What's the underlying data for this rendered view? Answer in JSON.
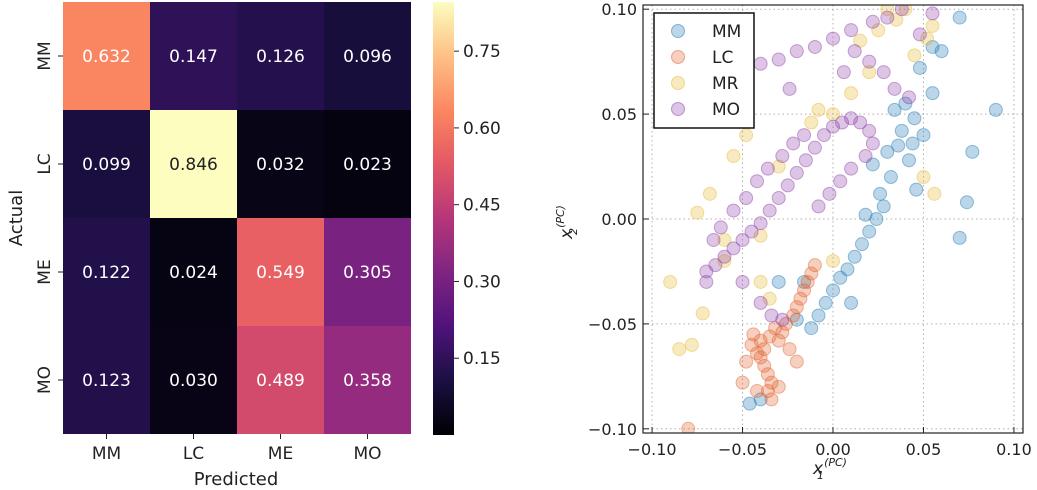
{
  "chart_data": [
    {
      "type": "heatmap",
      "title": "",
      "xlabel": "Predicted",
      "ylabel": "Actual",
      "x_categories": [
        "MM",
        "LC",
        "ME",
        "MO"
      ],
      "y_categories": [
        "MM",
        "LC",
        "ME",
        "MO"
      ],
      "values": [
        [
          0.632,
          0.147,
          0.126,
          0.096
        ],
        [
          0.099,
          0.846,
          0.032,
          0.023
        ],
        [
          0.122,
          0.024,
          0.549,
          0.305
        ],
        [
          0.123,
          0.03,
          0.489,
          0.358
        ]
      ],
      "cell_labels": [
        [
          "0.632",
          "0.147",
          "0.126",
          "0.096"
        ],
        [
          "0.099",
          "0.846",
          "0.032",
          "0.023"
        ],
        [
          "0.122",
          "0.024",
          "0.549",
          "0.305"
        ],
        [
          "0.123",
          "0.030",
          "0.489",
          "0.358"
        ]
      ],
      "colormap": "magma",
      "colorbar": {
        "range": [
          0.0,
          0.846
        ],
        "ticks": [
          0.15,
          0.3,
          0.45,
          0.6,
          0.75
        ],
        "tick_labels": [
          "0.15",
          "0.30",
          "0.45",
          "0.60",
          "0.75"
        ]
      }
    },
    {
      "type": "scatter",
      "title": "",
      "xlabel": "x",
      "xlabel_sub": "1",
      "xlabel_sup": "(PC)",
      "ylabel": "x",
      "ylabel_sub": "2",
      "ylabel_sup": "(PC)",
      "xlim": [
        -0.105,
        0.105
      ],
      "ylim": [
        -0.102,
        0.102
      ],
      "xticks": [
        -0.1,
        -0.05,
        0.0,
        0.05,
        0.1
      ],
      "xtick_labels": [
        "−0.10",
        "−0.05",
        "0.00",
        "0.05",
        "0.10"
      ],
      "yticks": [
        -0.1,
        -0.05,
        0.0,
        0.05,
        0.1
      ],
      "ytick_labels": [
        "−0.10",
        "−0.05",
        "0.00",
        "0.05",
        "0.10"
      ],
      "grid": true,
      "legend": "top-left",
      "series": [
        {
          "name": "MM",
          "color": "#1f77b4",
          "points": [
            [
              0.07,
              0.096
            ],
            [
              0.055,
              0.082
            ],
            [
              0.06,
              0.08
            ],
            [
              0.048,
              0.072
            ],
            [
              0.055,
              0.06
            ],
            [
              0.09,
              0.052
            ],
            [
              0.04,
              0.055
            ],
            [
              0.045,
              0.048
            ],
            [
              0.038,
              0.042
            ],
            [
              0.036,
              0.035
            ],
            [
              0.03,
              0.032
            ],
            [
              0.032,
              0.02
            ],
            [
              0.026,
              0.012
            ],
            [
              0.028,
              0.006
            ],
            [
              0.024,
              0.0
            ],
            [
              0.02,
              -0.006
            ],
            [
              0.016,
              -0.012
            ],
            [
              0.012,
              -0.018
            ],
            [
              0.008,
              -0.024
            ],
            [
              0.004,
              -0.028
            ],
            [
              0.0,
              -0.034
            ],
            [
              -0.004,
              -0.04
            ],
            [
              -0.008,
              -0.046
            ],
            [
              -0.012,
              -0.052
            ],
            [
              -0.03,
              -0.03
            ],
            [
              -0.02,
              -0.048
            ],
            [
              0.077,
              0.032
            ],
            [
              0.074,
              0.008
            ],
            [
              0.07,
              -0.009
            ],
            [
              0.042,
              0.028
            ],
            [
              0.046,
              0.014
            ],
            [
              0.034,
              0.052
            ],
            [
              0.044,
              0.036
            ],
            [
              0.05,
              0.04
            ],
            [
              -0.046,
              -0.088
            ],
            [
              -0.04,
              -0.086
            ],
            [
              0.018,
              0.002
            ],
            [
              0.022,
              0.026
            ],
            [
              -0.016,
              -0.03
            ],
            [
              0.01,
              -0.04
            ]
          ]
        },
        {
          "name": "LC",
          "color": "#e0612c",
          "points": [
            [
              -0.08,
              -0.1
            ],
            [
              -0.045,
              -0.06
            ],
            [
              -0.042,
              -0.064
            ],
            [
              -0.04,
              -0.066
            ],
            [
              -0.038,
              -0.07
            ],
            [
              -0.036,
              -0.074
            ],
            [
              -0.034,
              -0.078
            ],
            [
              -0.036,
              -0.082
            ],
            [
              -0.034,
              -0.086
            ],
            [
              -0.038,
              -0.062
            ],
            [
              -0.03,
              -0.058
            ],
            [
              -0.028,
              -0.054
            ],
            [
              -0.026,
              -0.05
            ],
            [
              -0.022,
              -0.046
            ],
            [
              -0.02,
              -0.042
            ],
            [
              -0.018,
              -0.038
            ],
            [
              -0.016,
              -0.034
            ],
            [
              -0.014,
              -0.03
            ],
            [
              -0.012,
              -0.026
            ],
            [
              -0.01,
              -0.022
            ],
            [
              -0.032,
              -0.052
            ],
            [
              -0.035,
              -0.056
            ],
            [
              -0.04,
              -0.058
            ],
            [
              -0.044,
              -0.055
            ],
            [
              -0.048,
              -0.068
            ],
            [
              -0.05,
              -0.078
            ],
            [
              -0.03,
              -0.08
            ],
            [
              -0.024,
              -0.062
            ],
            [
              -0.02,
              -0.068
            ],
            [
              -0.042,
              -0.082
            ]
          ]
        },
        {
          "name": "MR",
          "color": "#e6b830",
          "points": [
            [
              -0.09,
              -0.03
            ],
            [
              -0.085,
              -0.062
            ],
            [
              -0.078,
              -0.06
            ],
            [
              -0.072,
              -0.045
            ],
            [
              -0.06,
              -0.01
            ],
            [
              -0.075,
              0.003
            ],
            [
              -0.068,
              0.012
            ],
            [
              -0.055,
              0.03
            ],
            [
              -0.048,
              0.04
            ],
            [
              -0.04,
              -0.03
            ],
            [
              -0.035,
              -0.038
            ],
            [
              -0.06,
              -0.02
            ],
            [
              0.03,
              0.1
            ],
            [
              0.04,
              0.1
            ],
            [
              0.035,
              0.095
            ],
            [
              0.025,
              0.09
            ],
            [
              0.015,
              0.085
            ],
            [
              0.045,
              0.078
            ],
            [
              0.052,
              0.086
            ],
            [
              0.055,
              0.092
            ],
            [
              0.02,
              0.07
            ],
            [
              0.01,
              0.06
            ],
            [
              0.0,
              0.05
            ],
            [
              -0.008,
              0.052
            ],
            [
              -0.012,
              0.046
            ],
            [
              0.05,
              0.02
            ],
            [
              0.056,
              0.012
            ],
            [
              -0.03,
              0.025
            ],
            [
              -0.04,
              -0.008
            ],
            [
              0.0,
              -0.02
            ]
          ]
        },
        {
          "name": "MO",
          "color": "#8e3fa8",
          "points": [
            [
              -0.07,
              -0.025
            ],
            [
              -0.065,
              -0.022
            ],
            [
              -0.06,
              -0.018
            ],
            [
              -0.055,
              -0.014
            ],
            [
              -0.05,
              -0.01
            ],
            [
              -0.045,
              -0.006
            ],
            [
              -0.04,
              -0.002
            ],
            [
              -0.035,
              0.004
            ],
            [
              -0.03,
              0.01
            ],
            [
              -0.025,
              0.016
            ],
            [
              -0.02,
              0.022
            ],
            [
              -0.015,
              0.028
            ],
            [
              -0.01,
              0.034
            ],
            [
              -0.005,
              0.04
            ],
            [
              0.0,
              0.044
            ],
            [
              0.005,
              0.046
            ],
            [
              0.01,
              0.048
            ],
            [
              0.015,
              0.046
            ],
            [
              0.02,
              0.042
            ],
            [
              0.022,
              0.036
            ],
            [
              0.018,
              0.03
            ],
            [
              0.01,
              0.024
            ],
            [
              0.004,
              0.018
            ],
            [
              -0.002,
              0.012
            ],
            [
              -0.008,
              0.006
            ],
            [
              -0.062,
              -0.004
            ],
            [
              -0.055,
              0.004
            ],
            [
              -0.048,
              0.01
            ],
            [
              -0.042,
              0.018
            ],
            [
              -0.036,
              0.024
            ],
            [
              -0.028,
              0.03
            ],
            [
              -0.022,
              0.036
            ],
            [
              -0.016,
              0.04
            ],
            [
              -0.066,
              -0.01
            ],
            [
              -0.07,
              -0.03
            ],
            [
              0.038,
              0.1
            ],
            [
              0.03,
              0.096
            ],
            [
              0.022,
              0.094
            ],
            [
              0.01,
              0.09
            ],
            [
              0.0,
              0.086
            ],
            [
              -0.01,
              0.082
            ],
            [
              -0.02,
              0.08
            ],
            [
              -0.03,
              0.076
            ],
            [
              -0.04,
              0.074
            ],
            [
              -0.048,
              0.07
            ],
            [
              -0.055,
              0.074
            ],
            [
              -0.062,
              0.066
            ],
            [
              0.012,
              0.08
            ],
            [
              0.02,
              0.075
            ],
            [
              0.028,
              0.07
            ],
            [
              0.034,
              0.062
            ],
            [
              0.042,
              0.058
            ],
            [
              0.048,
              0.088
            ],
            [
              0.055,
              0.098
            ],
            [
              -0.05,
              -0.03
            ],
            [
              -0.04,
              -0.04
            ],
            [
              -0.034,
              -0.046
            ],
            [
              -0.028,
              -0.048
            ],
            [
              0.006,
              0.07
            ],
            [
              -0.024,
              0.062
            ]
          ]
        }
      ]
    }
  ]
}
